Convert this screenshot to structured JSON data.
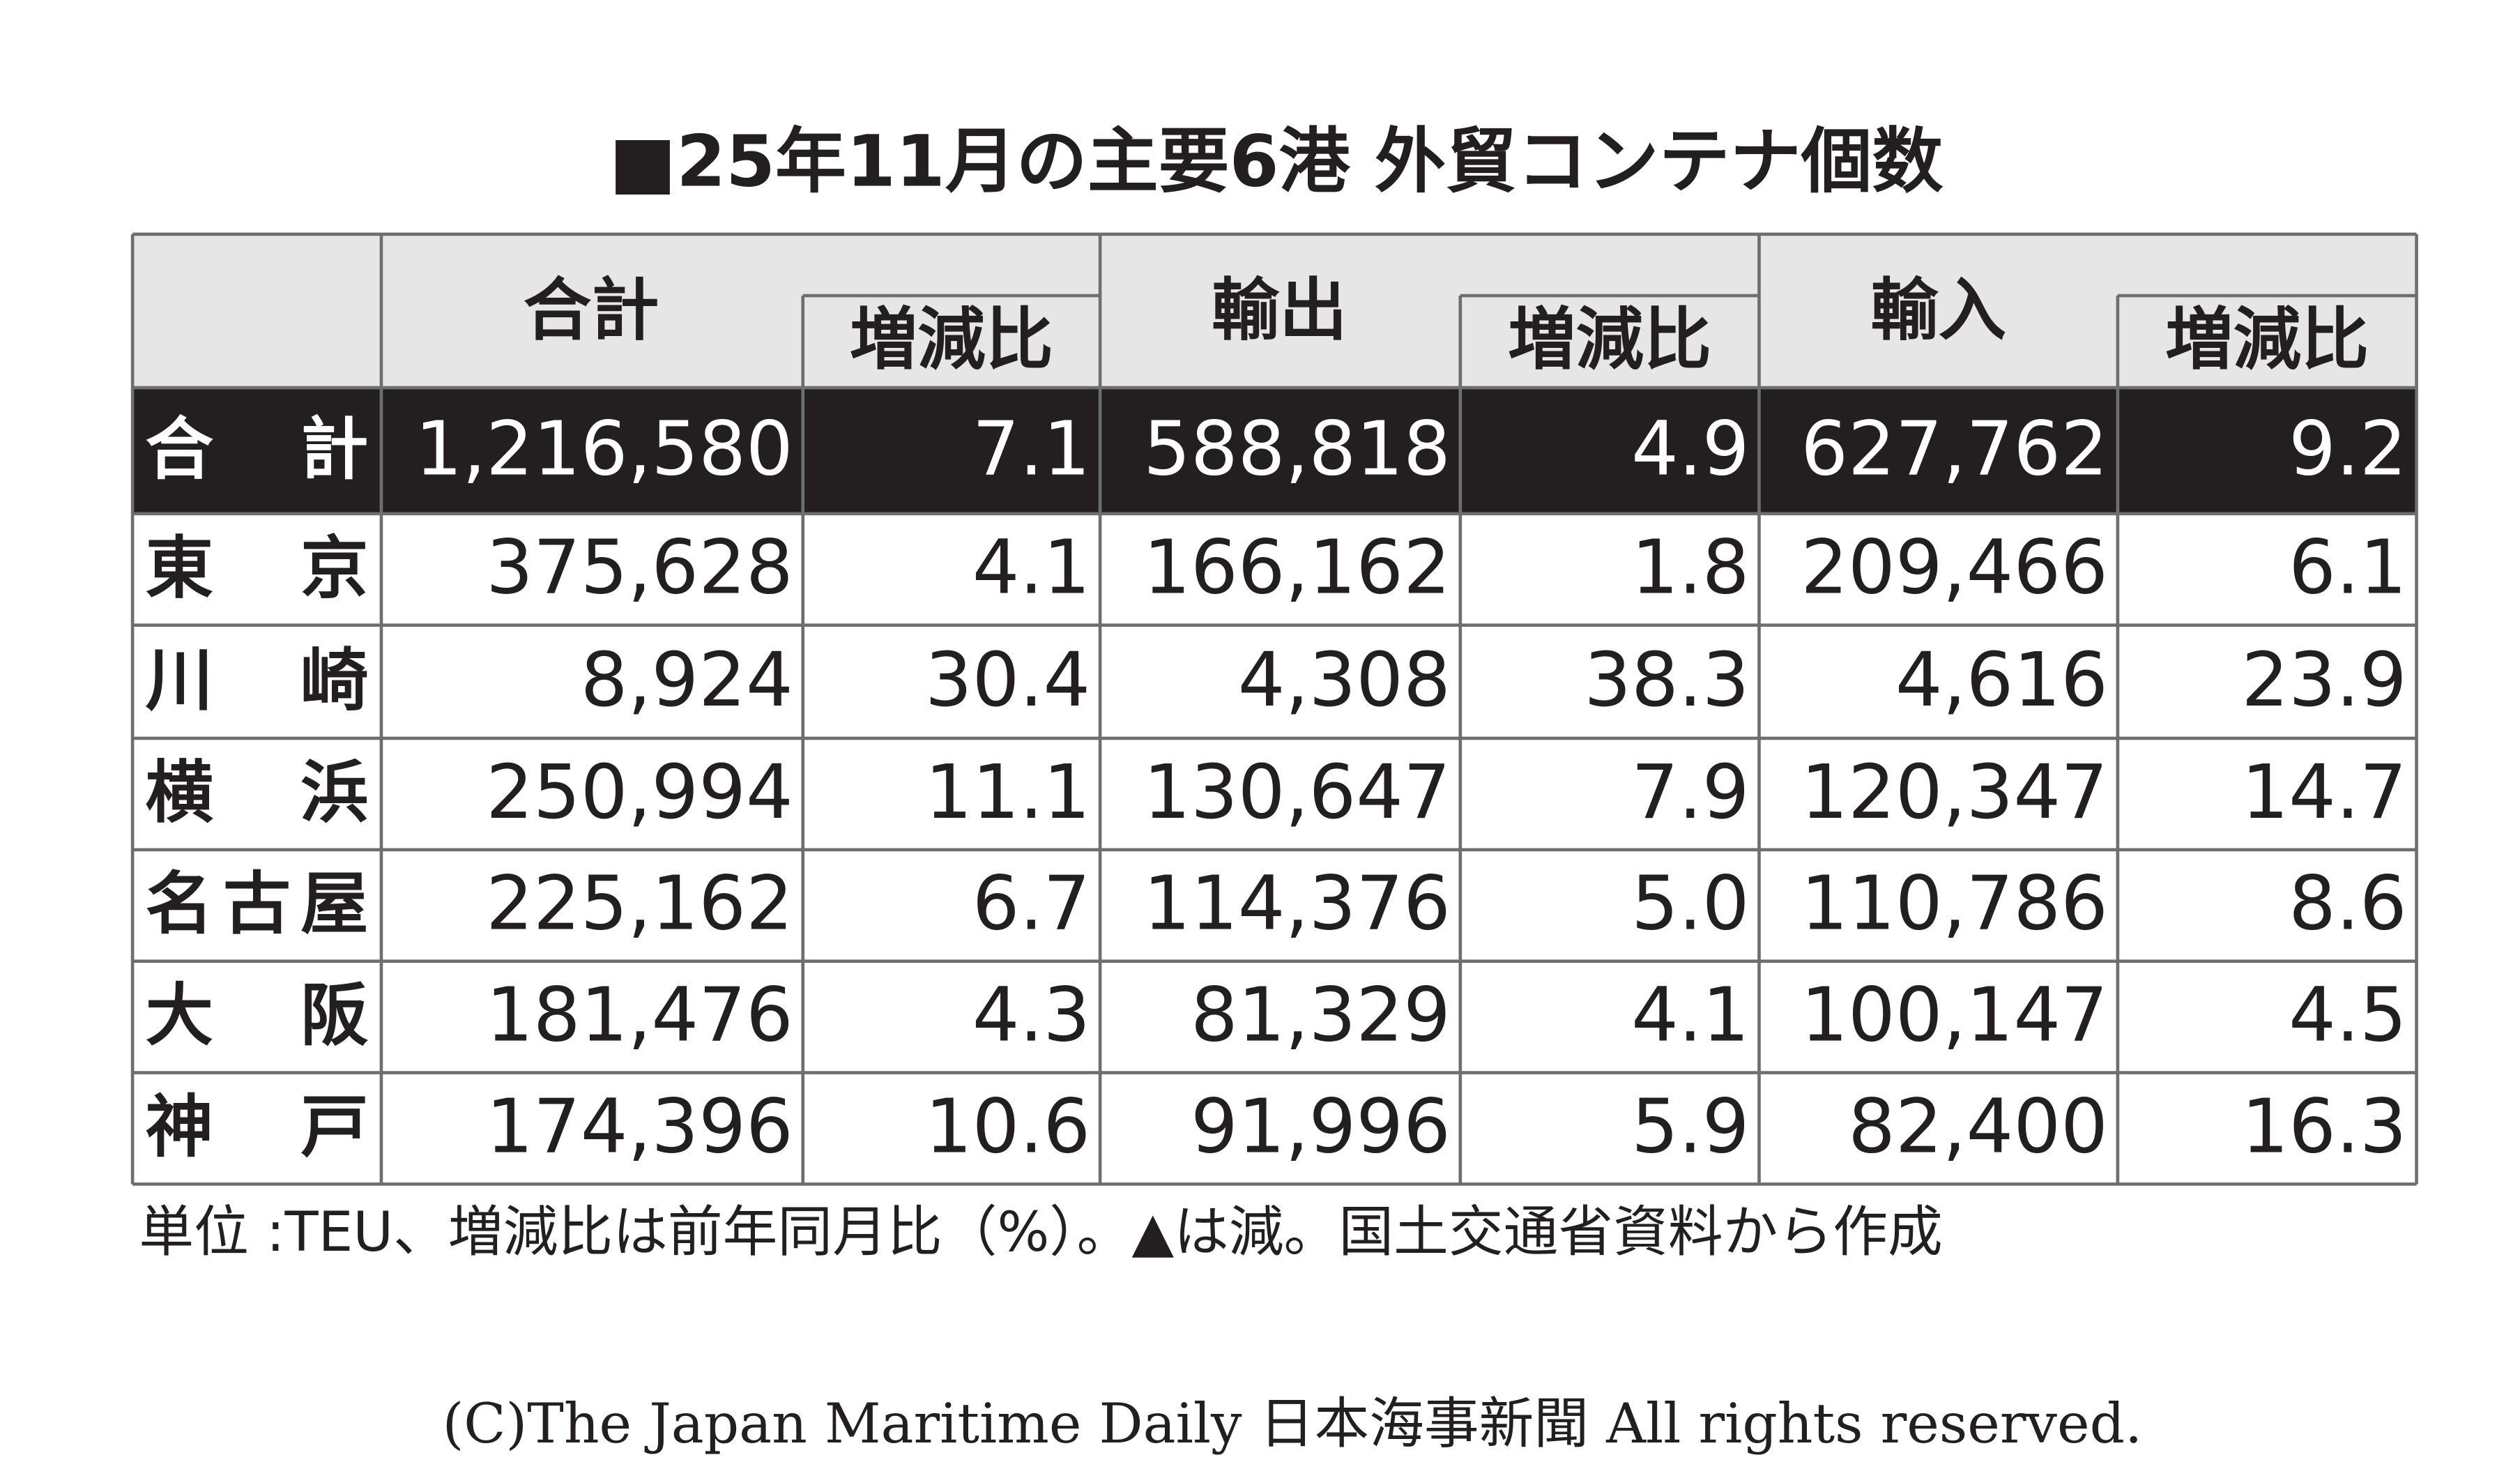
{
  "title": "■25年11月の主要6港 外貿コンテナ個数",
  "table": {
    "group_headers": [
      "合計",
      "輸出",
      "輸入"
    ],
    "sub_headers": [
      "増減比",
      "増減比",
      "増減比"
    ],
    "rows": [
      [
        "合　計",
        "1,216,580",
        "7.1",
        "588,818",
        "4.9",
        "627,762",
        "9.2"
      ],
      [
        "東　京",
        "375,628",
        "4.1",
        "166,162",
        "1.8",
        "209,466",
        "6.1"
      ],
      [
        "川　崎",
        "8,924",
        "30.4",
        "4,308",
        "38.3",
        "4,616",
        "23.9"
      ],
      [
        "横　浜",
        "250,994",
        "11.1",
        "130,647",
        "7.9",
        "120,347",
        "14.7"
      ],
      [
        "名古屋",
        "225,162",
        "6.7",
        "114,376",
        "5.0",
        "110,786",
        "8.6"
      ],
      [
        "大　阪",
        "181,476",
        "4.3",
        "81,329",
        "4.1",
        "100,147",
        "4.5"
      ],
      [
        "神　戸",
        "174,396",
        "10.6",
        "91,996",
        "5.9",
        "82,400",
        "16.3"
      ]
    ]
  },
  "footnote": "単位 :TEU、増減比は前年同月比（%）。▲は減。国土交通省資料から作成",
  "copyright": "(C)The Japan Maritime Daily 日本海事新聞 All rights reserved."
}
